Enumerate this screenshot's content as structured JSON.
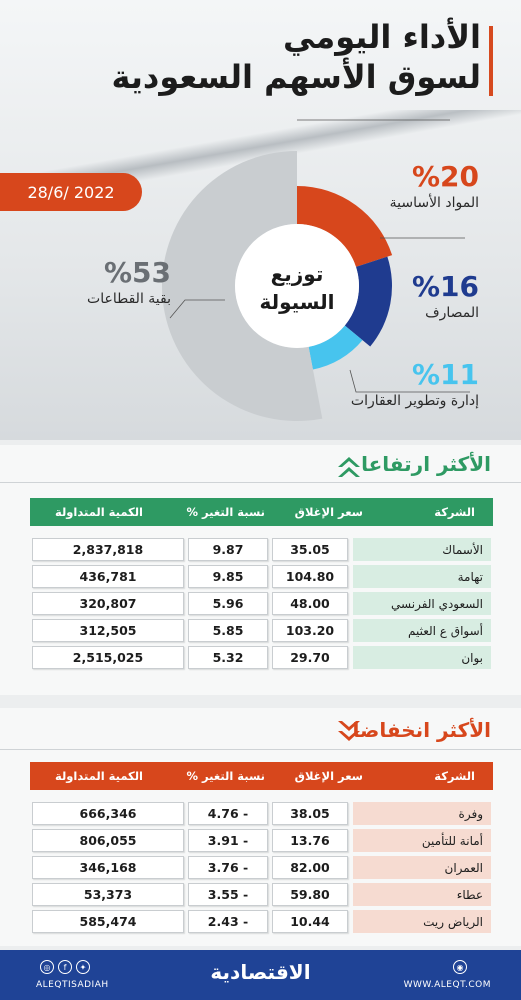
{
  "header": {
    "title_line1": "الأداء اليومي",
    "title_line2": "لسوق الأسهم السعودية",
    "date": "28/6/ 2022"
  },
  "donut": {
    "center_line1": "توزيع",
    "center_line2": "السيولة",
    "colors": {
      "materials": "#d7471c",
      "banks": "#1f3b8f",
      "realestate": "#47c4ee",
      "rest": "#c9cdd0"
    }
  },
  "chart_data": {
    "type": "pie",
    "categories": [
      "المواد الأساسية",
      "المصارف",
      "إدارة وتطوير العقارات",
      "بقية القطاعات"
    ],
    "values": [
      20,
      16,
      11,
      53
    ],
    "value_labels": [
      "%20",
      "%16",
      "%11",
      "%53"
    ],
    "title": "توزيع السيولة"
  },
  "gainers": {
    "title": "الأكثر ارتفاعا",
    "headers": {
      "company": "الشركة",
      "close": "سعر الإغلاق",
      "change": "نسبة التغير %",
      "volume": "الكمية المتداولة"
    },
    "rows": [
      {
        "company": "الأسماك",
        "close": "35.05",
        "change": "9.87",
        "volume": "2,837,818"
      },
      {
        "company": "تهامة",
        "close": "104.80",
        "change": "9.85",
        "volume": "436,781"
      },
      {
        "company": "السعودي الفرنسي",
        "close": "48.00",
        "change": "5.96",
        "volume": "320,807"
      },
      {
        "company": "أسواق ع العثيم",
        "close": "103.20",
        "change": "5.85",
        "volume": "312,505"
      },
      {
        "company": "بوان",
        "close": "29.70",
        "change": "5.32",
        "volume": "2,515,025"
      }
    ],
    "accent": "#2e9a63"
  },
  "losers": {
    "title": "الأكثر انخفاضا",
    "headers": {
      "company": "الشركة",
      "close": "سعر الإغلاق",
      "change": "نسبة التغير %",
      "volume": "الكمية المتداولة"
    },
    "rows": [
      {
        "company": "وفرة",
        "close": "38.05",
        "change": "4.76 -",
        "volume": "666,346"
      },
      {
        "company": "أمانة للتأمين",
        "close": "13.76",
        "change": "3.91 -",
        "volume": "806,055"
      },
      {
        "company": "العمران",
        "close": "82.00",
        "change": "3.76 -",
        "volume": "346,168"
      },
      {
        "company": "عطاء",
        "close": "59.80",
        "change": "3.55 -",
        "volume": "53,373"
      },
      {
        "company": "الرياض ريت",
        "close": "10.44",
        "change": "2.43 -",
        "volume": "585,474"
      }
    ],
    "accent": "#d7471c"
  },
  "footer": {
    "brand": "الاقتصادية",
    "handle": "ALEQTISADIAH",
    "website": "WWW.ALEQT.COM"
  }
}
